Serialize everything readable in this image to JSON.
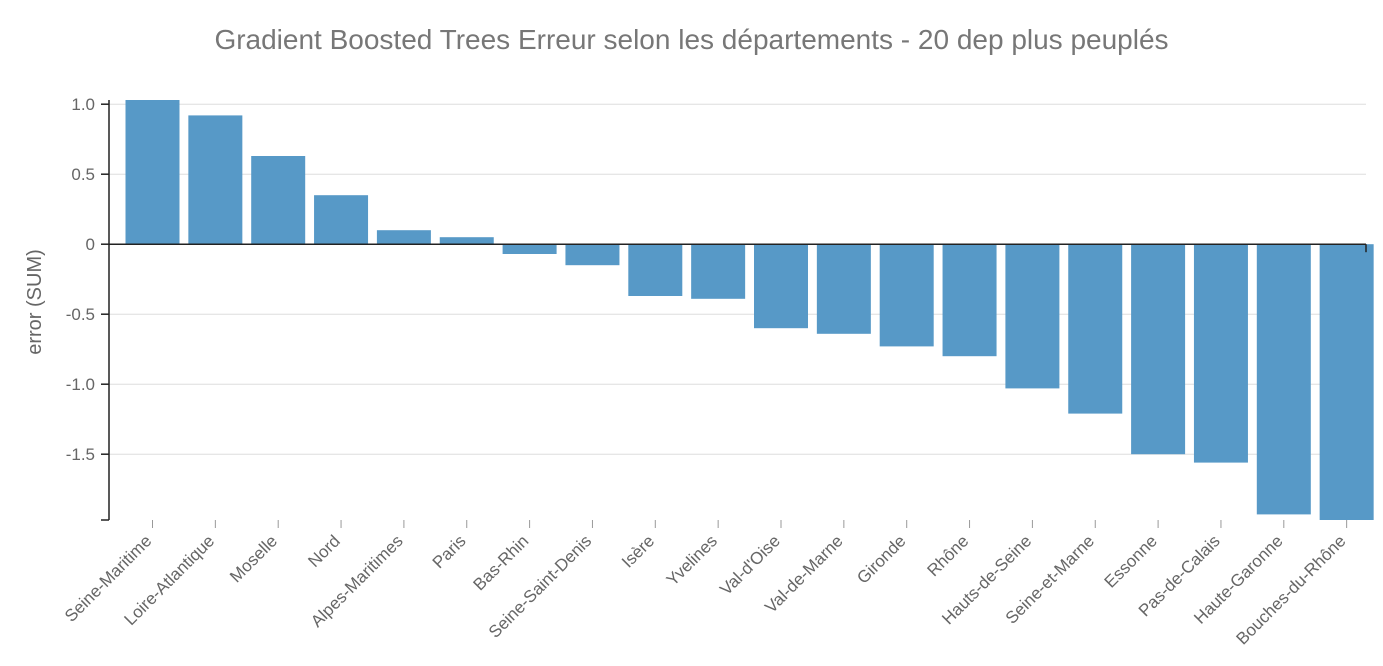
{
  "chart_data": {
    "type": "bar",
    "title": "Gradient Boosted Trees Erreur selon les départements - 20 dep plus peuplés",
    "xlabel": "",
    "ylabel": "error (SUM)",
    "ylim": [
      -1.97,
      1.03
    ],
    "yticks": [
      1.0,
      0.5,
      0,
      -0.5,
      -1.0,
      -1.5
    ],
    "ytick_labels": [
      "1.0",
      "0.5",
      "0",
      "-0.5",
      "-1.0",
      "-1.5"
    ],
    "grid": true,
    "bar_color": "#5799c7",
    "categories": [
      "Seine-Maritime",
      "Loire-Atlantique",
      "Moselle",
      "Nord",
      "Alpes-Maritimes",
      "Paris",
      "Bas-Rhin",
      "Seine-Saint-Denis",
      "Isère",
      "Yvelines",
      "Val-d'Oise",
      "Val-de-Marne",
      "Gironde",
      "Rhône",
      "Hauts-de-Seine",
      "Seine-et-Marne",
      "Essonne",
      "Pas-de-Calais",
      "Haute-Garonne",
      "Bouches-du-Rhône"
    ],
    "values": [
      1.03,
      0.92,
      0.63,
      0.35,
      0.1,
      0.05,
      -0.07,
      -0.15,
      -0.37,
      -0.39,
      -0.6,
      -0.64,
      -0.73,
      -0.8,
      -1.03,
      -1.21,
      -1.5,
      -1.56,
      -1.93,
      -1.97
    ]
  }
}
